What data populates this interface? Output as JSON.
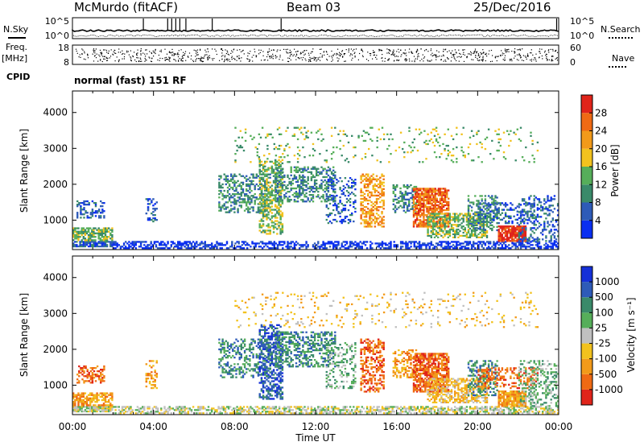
{
  "header": {
    "station": "McMurdo (fitACF)",
    "beam": "Beam 03",
    "date": "25/Dec/2016"
  },
  "side_labels": {
    "nsky": "N.Sky",
    "freq": "Freq.",
    "freq_unit": "[MHz]",
    "cpid": "CPID",
    "nsearch": "N.Search",
    "nave": "Nave"
  },
  "mode_text": "normal (fast) 151 RF",
  "colors": {
    "power": [
      "#0a2ff0",
      "#2e5bb8",
      "#3a8a6a",
      "#56ae5a",
      "#f2c21e",
      "#f29a1a",
      "#ef6a14",
      "#e0241a"
    ],
    "velocity": [
      "#e0241a",
      "#ef6a14",
      "#f29a1a",
      "#f2c21e",
      "#c0c0c0",
      "#56ae5a",
      "#3a8a6a",
      "#2e5bb8",
      "#1530d8"
    ]
  },
  "chart_data": [
    {
      "type": "line",
      "name": "N.Sky / N.Search",
      "ytick_labels_left": [
        "10^5",
        "10^0"
      ],
      "ytick_labels_right": [
        "10^5",
        "10^0"
      ],
      "ylim_log10": [
        0,
        5
      ]
    },
    {
      "type": "scatter",
      "name": "Freq / Nave",
      "ytick_labels_left": [
        "18",
        "8"
      ],
      "ytick_labels_right": [
        "60",
        "0"
      ],
      "ylim_left": [
        8,
        18
      ],
      "ylim_right": [
        0,
        60
      ]
    },
    {
      "type": "heatmap",
      "quantity": "Power",
      "ylabel": "Slant Range [km]",
      "ylim": [
        180,
        4600
      ],
      "yticks": [
        1000,
        2000,
        3000,
        4000
      ],
      "colorbar": {
        "label": "Power [dB]",
        "ticks": [
          4,
          8,
          12,
          16,
          20,
          24,
          28
        ],
        "range": [
          0,
          32
        ]
      },
      "xlim_hours": [
        0,
        24
      ]
    },
    {
      "type": "heatmap",
      "quantity": "Velocity",
      "ylabel": "Slant Range [km]",
      "ylim": [
        180,
        4600
      ],
      "yticks": [
        1000,
        2000,
        3000,
        4000
      ],
      "colorbar": {
        "label": "Velocity [m s⁻¹]",
        "ticks": [
          "1000",
          "500",
          "100",
          "25",
          "-25",
          "-100",
          "-500",
          "-1000"
        ]
      },
      "xlabel": "Time UT",
      "xticks": [
        "00:00",
        "04:00",
        "08:00",
        "12:00",
        "16:00",
        "20:00",
        "00:00"
      ],
      "xlim_hours": [
        0,
        24
      ]
    }
  ]
}
